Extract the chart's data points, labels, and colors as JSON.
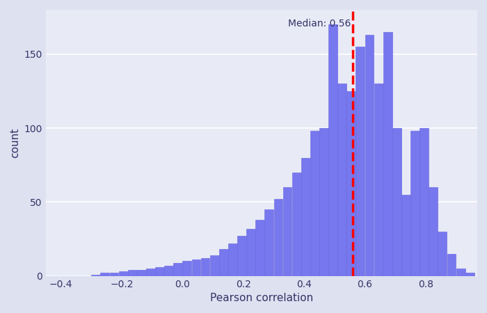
{
  "median": 0.56,
  "xlabel": "Pearson correlation",
  "ylabel": "count",
  "xlim": [
    -0.45,
    0.97
  ],
  "ylim": [
    0,
    180
  ],
  "bar_color": "#7777ee",
  "bar_edgecolor": "#6666dd",
  "median_line_color": "red",
  "median_label": "Median: 0.56",
  "background_color": "#e8eaf6",
  "figure_background": "#dde1f0",
  "yticks": [
    0,
    50,
    100,
    150
  ],
  "xticks": [
    -0.4,
    -0.2,
    0.0,
    0.2,
    0.4,
    0.6,
    0.8
  ],
  "bin_width": 0.03,
  "bin_left_edges": [
    -0.45,
    -0.42,
    -0.39,
    -0.36,
    -0.33,
    -0.3,
    -0.27,
    -0.24,
    -0.21,
    -0.18,
    -0.15,
    -0.12,
    -0.09,
    -0.06,
    -0.03,
    0.0,
    0.03,
    0.06,
    0.09,
    0.12,
    0.15,
    0.18,
    0.21,
    0.24,
    0.27,
    0.3,
    0.33,
    0.36,
    0.39,
    0.42,
    0.45,
    0.48,
    0.51,
    0.54,
    0.57,
    0.6,
    0.63,
    0.66,
    0.69,
    0.72,
    0.75,
    0.78,
    0.81,
    0.84,
    0.87,
    0.9,
    0.93
  ],
  "bin_counts": [
    0,
    0,
    0,
    0,
    0,
    1,
    2,
    2,
    3,
    4,
    4,
    5,
    6,
    7,
    9,
    10,
    11,
    12,
    14,
    18,
    22,
    27,
    32,
    38,
    45,
    52,
    60,
    70,
    80,
    98,
    100,
    170,
    130,
    125,
    155,
    163,
    130,
    165,
    100,
    55,
    98,
    100,
    60,
    30,
    15,
    5,
    2
  ]
}
